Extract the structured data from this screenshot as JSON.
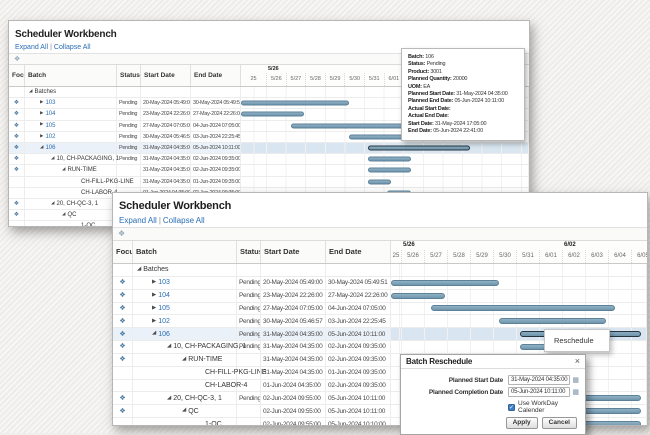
{
  "app": {
    "window_title": "Scheduler Workbench",
    "toolbar": {
      "expand_all": "Expand All",
      "separator": "|",
      "collapse_all": "Collapse All"
    }
  },
  "columns": {
    "focus": "Focus",
    "batch": "Batch",
    "status": "Status",
    "start": "Start Date",
    "end": "End Date"
  },
  "timeline": {
    "weeks": [
      "5/26",
      "6/02"
    ],
    "days": [
      "25",
      "5/26",
      "5/27",
      "5/28",
      "5/29",
      "5/30",
      "5/31",
      "6/01",
      "6/02",
      "6/03",
      "6/04",
      "6/05"
    ]
  },
  "rows": [
    {
      "indent": 0,
      "expand": "open",
      "label": "Batches",
      "link": false,
      "focus": false,
      "status": "",
      "start": "",
      "end": "",
      "selected": false
    },
    {
      "indent": 1,
      "expand": "closed",
      "label": "103",
      "link": true,
      "focus": true,
      "status": "Pending",
      "start": "20-May-2024 05:49:00",
      "end": "30-May-2024 05:49:51",
      "selected": false
    },
    {
      "indent": 1,
      "expand": "closed",
      "label": "104",
      "link": true,
      "focus": true,
      "status": "Pending",
      "start": "23-May-2024 22:26:00",
      "end": "27-May-2024 22:26:00",
      "selected": false
    },
    {
      "indent": 1,
      "expand": "closed",
      "label": "105",
      "link": true,
      "focus": true,
      "status": "Pending",
      "start": "27-May-2024 07:05:00",
      "end": "04-Jun-2024 07:05:00",
      "selected": false
    },
    {
      "indent": 1,
      "expand": "closed",
      "label": "102",
      "link": true,
      "focus": true,
      "status": "Pending",
      "start": "30-May-2024 05:46:57",
      "end": "03-Jun-2024 22:25:45",
      "selected": false
    },
    {
      "indent": 1,
      "expand": "open",
      "label": "106",
      "link": true,
      "focus": true,
      "status": "Pending",
      "start": "31-May-2024 04:35:00",
      "end": "05-Jun-2024 10:11:00",
      "selected": true
    },
    {
      "indent": 2,
      "expand": "open",
      "label": "10, CH-PACKAGING, 1",
      "link": false,
      "focus": true,
      "status": "Pending",
      "start": "31-May-2024 04:35:00",
      "end": "02-Jun-2024 09:35:00",
      "selected": false
    },
    {
      "indent": 3,
      "expand": "open",
      "label": "RUN-TIME",
      "link": false,
      "focus": true,
      "status": "",
      "start": "31-May-2024 04:35:00",
      "end": "02-Jun-2024 09:35:00",
      "selected": false
    },
    {
      "indent": 4,
      "expand": "none",
      "label": "CH-FILL-PKG-LINE",
      "link": false,
      "focus": false,
      "status": "",
      "start": "31-May-2024 04:35:00",
      "end": "01-Jun-2024 09:35:00",
      "selected": false
    },
    {
      "indent": 4,
      "expand": "none",
      "label": "CH-LABOR-4",
      "link": false,
      "focus": false,
      "status": "",
      "start": "01-Jun-2024 04:35:00",
      "end": "02-Jun-2024 09:35:00",
      "selected": false
    },
    {
      "indent": 2,
      "expand": "open",
      "label": "20, CH-QC-3, 1",
      "link": false,
      "focus": true,
      "status": "Pending",
      "start": "02-Jun-2024 09:55:00",
      "end": "05-Jun-2024 10:11:00",
      "selected": false
    },
    {
      "indent": 3,
      "expand": "open",
      "label": "QC",
      "link": false,
      "focus": true,
      "status": "",
      "start": "02-Jun-2024 09:55:00",
      "end": "05-Jun-2024 10:11:00",
      "selected": false
    },
    {
      "indent": 4,
      "expand": "none",
      "label": "1-QC",
      "link": false,
      "focus": false,
      "status": "",
      "start": "02-Jun-2024 09:55:00",
      "end": "05-Jun-2024 10:10:00",
      "selected": false
    }
  ],
  "tooltip": {
    "lines": [
      {
        "label": "Batch:",
        "value": "106"
      },
      {
        "label": "Status:",
        "value": "Pending"
      },
      {
        "label": "Product:",
        "value": "3001"
      },
      {
        "label": "Planned Quantity:",
        "value": "20000"
      },
      {
        "label": "UOM:",
        "value": "EA"
      },
      {
        "label": "Planned Start Date:",
        "value": "31-May-2024 04:35:00"
      },
      {
        "label": "Planned End Date:",
        "value": "05-Jun-2024 10:11:00"
      },
      {
        "label": "Actual Start Date:",
        "value": ""
      },
      {
        "label": "Actual End Date:",
        "value": ""
      },
      {
        "label": "Start Date:",
        "value": "31-May-2024 17:05:00"
      },
      {
        "label": "End Date:",
        "value": "05-Jun-2024 22:41:00"
      }
    ]
  },
  "context_menu": {
    "label": "Reschedule"
  },
  "dialog": {
    "title": "Batch Reschedule",
    "close": "×",
    "fields": [
      {
        "label": "Planned Start Date",
        "value": "31-May-2024 04:35:00"
      },
      {
        "label": "Planned Completion Date",
        "value": "05-Jun-2024 10:11:00"
      }
    ],
    "checkbox": {
      "checked": true,
      "label": "Use WorkDay Calender"
    },
    "buttons": {
      "apply": "Apply",
      "cancel": "Cancel"
    }
  },
  "icons": {
    "focus": "❖",
    "collapsed": "▶",
    "expanded": "◢",
    "calendar": "▦",
    "check": "✓"
  },
  "colors": {
    "bar_fill": "#7fa3b8",
    "bar_border": "#5d8199",
    "bar_selected_border": "#26343f",
    "selected_row": "#d9e6f1",
    "link": "#2a6db5",
    "checkbox_accent": "#3f7cc0",
    "background": "#f1efeb"
  }
}
